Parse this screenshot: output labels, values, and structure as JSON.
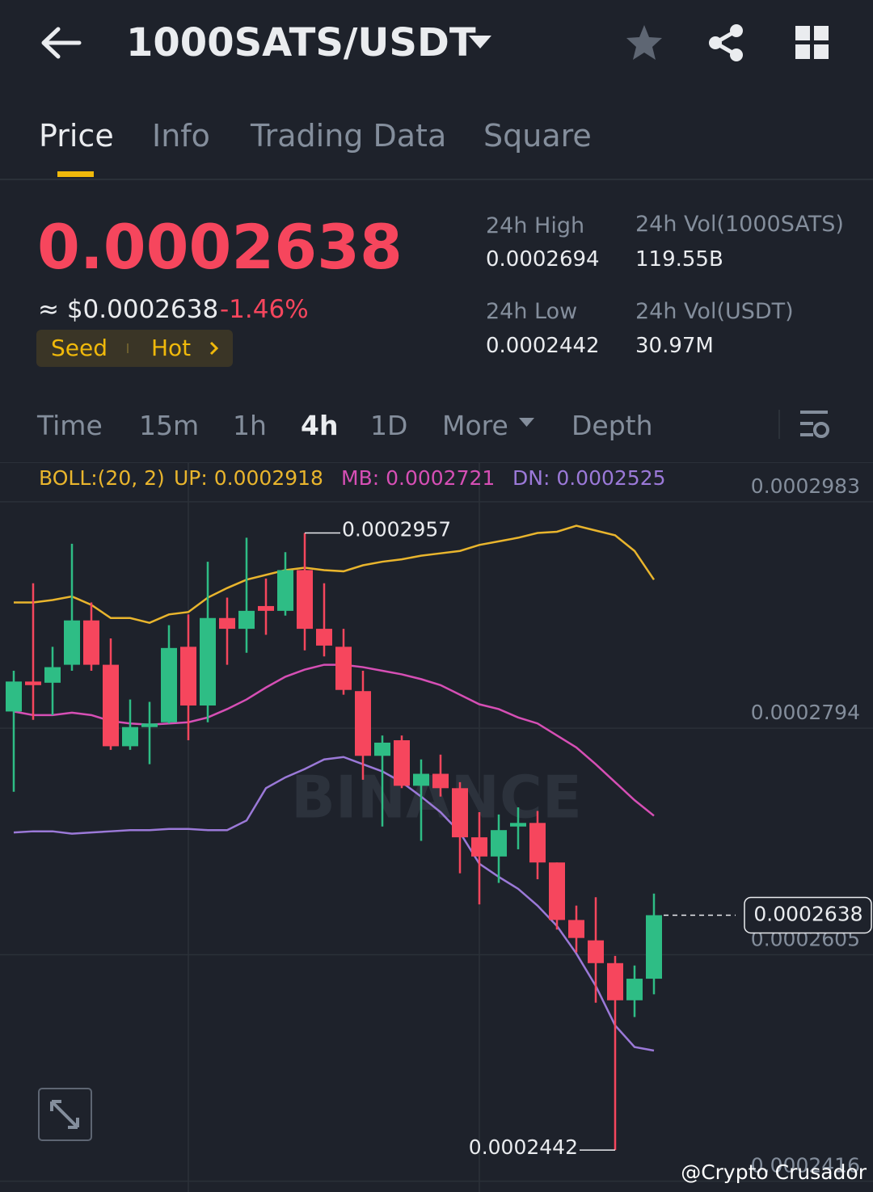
{
  "header": {
    "title": "1000SATS/USDT"
  },
  "tabs": [
    "Price",
    "Info",
    "Trading Data",
    "Square"
  ],
  "ticker": {
    "price": "0.0002638",
    "fiat": "≈ $0.0002638",
    "change": "-1.46%",
    "tags": [
      "Seed",
      "Hot"
    ],
    "stats": [
      {
        "label": "24h High",
        "value": "0.0002694"
      },
      {
        "label": "24h Vol(1000SATS)",
        "value": "119.55B"
      },
      {
        "label": "24h Low",
        "value": "0.0002442"
      },
      {
        "label": "24h Vol(USDT)",
        "value": "30.97M"
      }
    ]
  },
  "intervals": [
    "Time",
    "15m",
    "1h",
    "4h",
    "1D",
    "More",
    "Depth"
  ],
  "chart_data": {
    "type": "candlestick",
    "indicator": "BOLL:(20, 2)",
    "watermark": "BINANCE",
    "ylim": [
      0.0002407,
      0.0003016
    ],
    "yticks": [
      0.0002983,
      0.0002794,
      0.0002605,
      0.0002416
    ],
    "grid": true,
    "up_color": "#2ebd85",
    "down_color": "#f6465d",
    "open": [
      0.0002808,
      0.0002833,
      0.0002832,
      0.0002847,
      0.0002884,
      0.0002847,
      0.0002779,
      0.0002795,
      0.0002799,
      0.0002862,
      0.0002813,
      0.0002886,
      0.0002877,
      0.0002896,
      0.0002892,
      0.0002926,
      0.0002877,
      0.0002862,
      0.0002825,
      0.0002771,
      0.0002784,
      0.0002746,
      0.0002756,
      0.0002744,
      0.0002703,
      0.0002687,
      0.0002712,
      0.0002715,
      0.0002682,
      0.0002634,
      0.0002617,
      0.0002598,
      0.0002567,
      0.0002585
    ],
    "high": [
      0.0002842,
      0.0002915,
      0.0002862,
      0.0002948,
      0.0002899,
      0.0002869,
      0.0002818,
      0.0002816,
      0.000288,
      0.0002889,
      0.0002933,
      0.0002903,
      0.0002953,
      0.0002919,
      0.0002941,
      0.0002957,
      0.0002915,
      0.0002877,
      0.0002842,
      0.0002788,
      0.0002788,
      0.0002768,
      0.0002772,
      0.0002749,
      0.0002724,
      0.0002722,
      0.0002728,
      0.0002725,
      0.0002682,
      0.0002646,
      0.0002653,
      0.0002604,
      0.0002596,
      0.0002656
    ],
    "low": [
      0.0002741,
      0.0002801,
      0.0002805,
      0.0002842,
      0.0002842,
      0.0002776,
      0.0002776,
      0.0002764,
      0.0002798,
      0.0002784,
      0.0002799,
      0.0002847,
      0.0002857,
      0.0002872,
      0.0002888,
      0.0002859,
      0.0002854,
      0.0002822,
      0.0002751,
      0.0002712,
      0.0002744,
      0.00027,
      0.0002737,
      0.0002673,
      0.0002647,
      0.0002665,
      0.0002693,
      0.0002668,
      0.0002626,
      0.0002607,
      0.0002565,
      0.0002442,
      0.0002553,
      0.0002572
    ],
    "close": [
      0.0002833,
      0.000283,
      0.0002845,
      0.0002884,
      0.0002847,
      0.0002779,
      0.0002795,
      0.0002798,
      0.0002861,
      0.0002813,
      0.0002886,
      0.0002877,
      0.0002892,
      0.0002892,
      0.0002926,
      0.0002877,
      0.0002863,
      0.0002826,
      0.0002771,
      0.0002782,
      0.0002746,
      0.0002756,
      0.0002744,
      0.0002703,
      0.0002687,
      0.0002709,
      0.0002715,
      0.0002682,
      0.0002634,
      0.0002619,
      0.0002598,
      0.0002567,
      0.0002585,
      0.0002638
    ],
    "series": [
      {
        "name": "UP: 0.0002918",
        "color": "#e9b52d",
        "values": [
          0.0002899,
          0.0002899,
          0.0002901,
          0.0002904,
          0.0002897,
          0.0002886,
          0.0002886,
          0.0002882,
          0.0002889,
          0.0002891,
          0.0002903,
          0.0002911,
          0.0002918,
          0.0002922,
          0.0002926,
          0.0002928,
          0.0002926,
          0.0002925,
          0.000293,
          0.0002933,
          0.0002935,
          0.0002938,
          0.000294,
          0.0002942,
          0.0002947,
          0.000295,
          0.0002953,
          0.0002957,
          0.0002958,
          0.0002963,
          0.0002959,
          0.0002955,
          0.0002942,
          0.0002918
        ]
      },
      {
        "name": "MB: 0.0002721",
        "color": "#d64fb5",
        "values": [
          0.0002808,
          0.0002805,
          0.0002805,
          0.0002807,
          0.0002805,
          0.00028,
          0.0002798,
          0.0002797,
          0.0002798,
          0.0002799,
          0.0002803,
          0.000281,
          0.0002818,
          0.0002828,
          0.0002837,
          0.0002843,
          0.0002847,
          0.0002847,
          0.0002845,
          0.0002842,
          0.0002839,
          0.0002835,
          0.000283,
          0.0002822,
          0.0002814,
          0.000281,
          0.0002803,
          0.0002798,
          0.0002788,
          0.0002778,
          0.0002764,
          0.0002749,
          0.0002734,
          0.0002721
        ]
      },
      {
        "name": "DN: 0.0002525",
        "color": "#9b79d8",
        "values": [
          0.0002707,
          0.0002708,
          0.0002708,
          0.0002706,
          0.0002707,
          0.0002708,
          0.0002709,
          0.0002709,
          0.000271,
          0.000271,
          0.0002709,
          0.0002709,
          0.0002717,
          0.0002744,
          0.0002753,
          0.000276,
          0.0002768,
          0.000277,
          0.0002764,
          0.0002758,
          0.0002749,
          0.0002737,
          0.0002724,
          0.0002707,
          0.0002681,
          0.000267,
          0.000266,
          0.0002646,
          0.0002629,
          0.0002606,
          0.0002579,
          0.0002546,
          0.0002528,
          0.0002525
        ]
      }
    ],
    "high_label": 0.0002957,
    "low_label": 0.0002442,
    "last_price": 0.0002638
  },
  "footer": {
    "credit": "@Crypto Crusador"
  }
}
